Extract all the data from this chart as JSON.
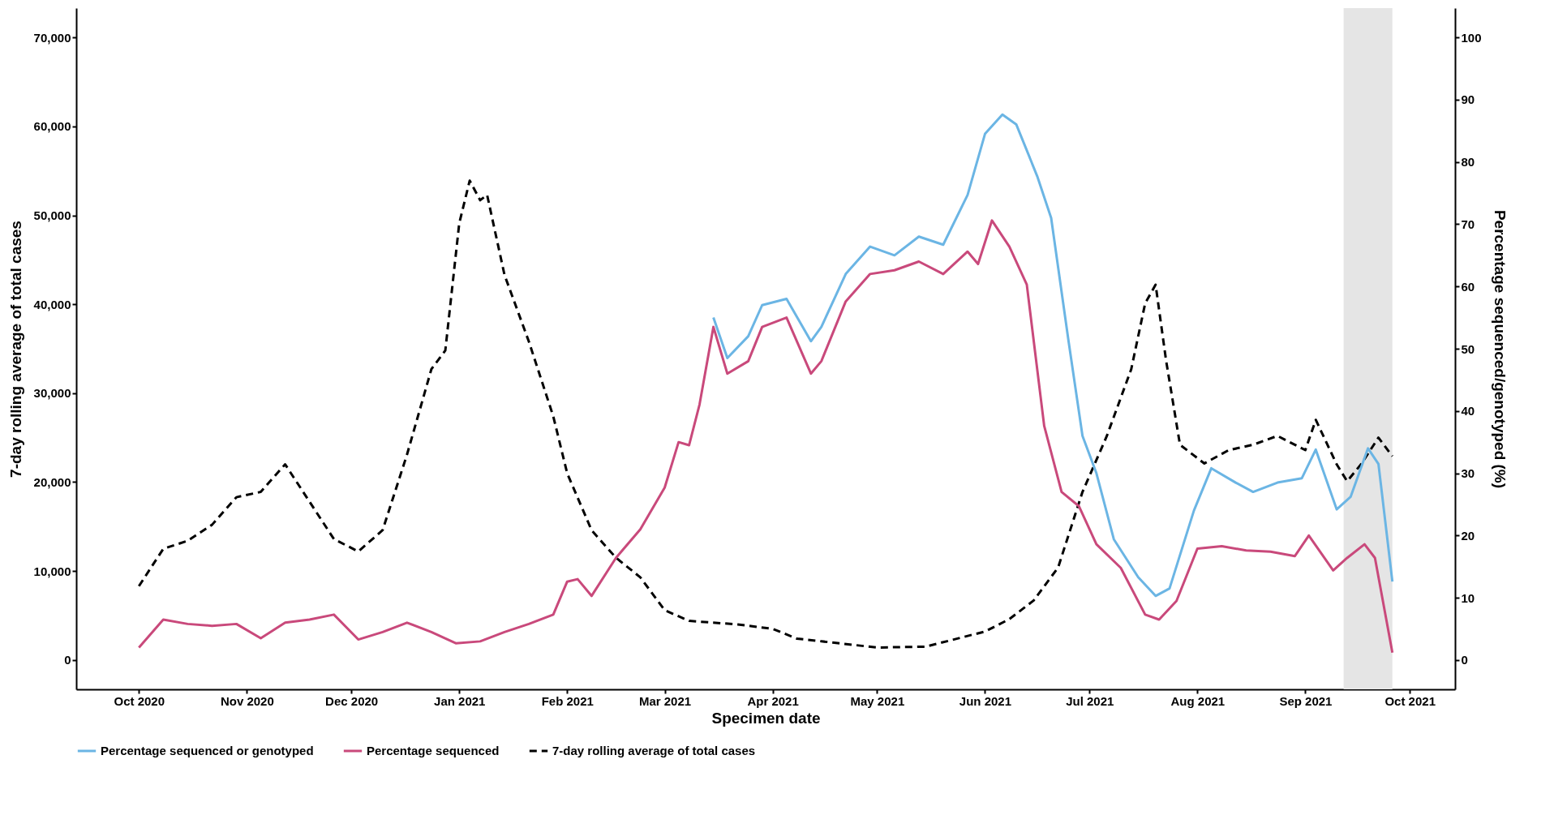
{
  "chart_data": {
    "type": "line",
    "xlabel": "Specimen date",
    "ylabel": "7-day rolling average of total cases",
    "y2label": "Percentage sequenced/genotyped (%)",
    "xlim": [
      "2020-09-13",
      "2021-10-14"
    ],
    "xticks": [
      {
        "value": "2020-10-01",
        "label": "Oct 2020"
      },
      {
        "value": "2020-11-01",
        "label": "Nov 2020"
      },
      {
        "value": "2020-12-01",
        "label": "Dec 2020"
      },
      {
        "value": "2021-01-01",
        "label": "Jan 2021"
      },
      {
        "value": "2021-02-01",
        "label": "Feb 2021"
      },
      {
        "value": "2021-03-01",
        "label": "Mar 2021"
      },
      {
        "value": "2021-04-01",
        "label": "Apr 2021"
      },
      {
        "value": "2021-05-01",
        "label": "May 2021"
      },
      {
        "value": "2021-06-01",
        "label": "Jun 2021"
      },
      {
        "value": "2021-07-01",
        "label": "Jul 2021"
      },
      {
        "value": "2021-08-01",
        "label": "Aug 2021"
      },
      {
        "value": "2021-09-01",
        "label": "Sep 2021"
      },
      {
        "value": "2021-10-01",
        "label": "Oct 2021"
      }
    ],
    "ylim": [
      -3300,
      73300
    ],
    "yticks": [
      0,
      {
        "value": 10000,
        "label": "10,000"
      },
      {
        "value": 20000,
        "label": "20,000"
      },
      {
        "value": 30000,
        "label": "30,000"
      },
      {
        "value": 40000,
        "label": "40,000"
      },
      {
        "value": 50000,
        "label": "50,000"
      },
      {
        "value": 60000,
        "label": "60,000"
      },
      {
        "value": 70000,
        "label": "70,000"
      }
    ],
    "y2lim": [
      -4.7,
      104.7
    ],
    "y2ticks": [
      0,
      10,
      20,
      30,
      40,
      50,
      60,
      70,
      80,
      90,
      100
    ],
    "grid": false,
    "legend": "bottom",
    "bands": [
      {
        "axis": "x",
        "from": "2021-09-12",
        "to": "2021-09-26",
        "color": "#e5e5e5"
      }
    ],
    "series": [
      {
        "name": "Percentage sequenced or genotyped",
        "color": "#6bb5e4",
        "axis": "y2",
        "line_style": "solid",
        "x": [
          "2021-03-15",
          "2021-03-19",
          "2021-03-25",
          "2021-03-29",
          "2021-04-05",
          "2021-04-12",
          "2021-04-15",
          "2021-04-22",
          "2021-04-29",
          "2021-05-06",
          "2021-05-13",
          "2021-05-20",
          "2021-05-27",
          "2021-06-01",
          "2021-06-06",
          "2021-06-10",
          "2021-06-16",
          "2021-06-20",
          "2021-06-25",
          "2021-06-29",
          "2021-07-03",
          "2021-07-08",
          "2021-07-15",
          "2021-07-20",
          "2021-07-24",
          "2021-07-31",
          "2021-08-05",
          "2021-08-12",
          "2021-08-17",
          "2021-08-24",
          "2021-08-31",
          "2021-09-04",
          "2021-09-10",
          "2021-09-14",
          "2021-09-19",
          "2021-09-22",
          "2021-09-26"
        ],
        "values": [
          55,
          48.5,
          52,
          57,
          58,
          51.2,
          53.5,
          62,
          66.4,
          65,
          68,
          66.7,
          74.7,
          84.5,
          87.6,
          86,
          77.7,
          71,
          51.2,
          36,
          30,
          19.4,
          13.3,
          10.3,
          11.5,
          24,
          30.8,
          28.5,
          27,
          28.5,
          29.2,
          33.8,
          24.2,
          26.2,
          34,
          31.5,
          12.6
        ]
      },
      {
        "name": "Percentage sequenced",
        "color": "#c9497b",
        "axis": "y2",
        "line_style": "solid",
        "x": [
          "2020-10-01",
          "2020-10-08",
          "2020-10-15",
          "2020-10-22",
          "2020-10-29",
          "2020-11-05",
          "2020-11-12",
          "2020-11-19",
          "2020-11-26",
          "2020-12-03",
          "2020-12-10",
          "2020-12-17",
          "2020-12-24",
          "2020-12-31",
          "2021-01-07",
          "2021-01-14",
          "2021-01-21",
          "2021-01-28",
          "2021-02-01",
          "2021-02-04",
          "2021-02-08",
          "2021-02-15",
          "2021-02-22",
          "2021-03-01",
          "2021-03-05",
          "2021-03-08",
          "2021-03-11",
          "2021-03-15",
          "2021-03-19",
          "2021-03-25",
          "2021-03-29",
          "2021-04-05",
          "2021-04-12",
          "2021-04-15",
          "2021-04-22",
          "2021-04-29",
          "2021-05-06",
          "2021-05-13",
          "2021-05-20",
          "2021-05-27",
          "2021-05-30",
          "2021-06-03",
          "2021-06-08",
          "2021-06-13",
          "2021-06-18",
          "2021-06-23",
          "2021-06-28",
          "2021-07-03",
          "2021-07-10",
          "2021-07-17",
          "2021-07-21",
          "2021-07-26",
          "2021-08-01",
          "2021-08-08",
          "2021-08-15",
          "2021-08-22",
          "2021-08-29",
          "2021-09-02",
          "2021-09-09",
          "2021-09-13",
          "2021-09-18",
          "2021-09-21",
          "2021-09-26"
        ],
        "values": [
          2,
          6.5,
          5.8,
          5.5,
          5.8,
          3.5,
          6,
          6.5,
          7.3,
          3.3,
          4.5,
          6,
          4.5,
          2.7,
          3,
          4.5,
          5.8,
          7.3,
          12.6,
          13,
          10.3,
          16.4,
          21,
          27.7,
          35,
          34.5,
          41,
          53.5,
          46,
          48,
          53.5,
          55,
          46,
          48,
          57.6,
          62,
          62.6,
          64,
          62,
          65.6,
          63.6,
          70.6,
          66.4,
          60.3,
          37.6,
          27,
          24.7,
          18.6,
          14.8,
          7.3,
          6.5,
          9.5,
          17.9,
          18.3,
          17.6,
          17.4,
          16.7,
          20,
          14.4,
          16.4,
          18.6,
          16.4,
          1.2
        ]
      },
      {
        "name": "7-day rolling average of total cases",
        "color": "#000000",
        "axis": "y",
        "line_style": "dashed",
        "x": [
          "2020-10-01",
          "2020-10-08",
          "2020-10-15",
          "2020-10-22",
          "2020-10-29",
          "2020-11-05",
          "2020-11-12",
          "2020-11-19",
          "2020-11-26",
          "2020-12-03",
          "2020-12-10",
          "2020-12-17",
          "2020-12-24",
          "2020-12-28",
          "2021-01-01",
          "2021-01-04",
          "2021-01-07",
          "2021-01-09",
          "2021-01-14",
          "2021-01-21",
          "2021-01-28",
          "2021-02-01",
          "2021-02-08",
          "2021-02-15",
          "2021-02-22",
          "2021-03-01",
          "2021-03-08",
          "2021-03-22",
          "2021-04-01",
          "2021-04-08",
          "2021-04-15",
          "2021-05-01",
          "2021-05-15",
          "2021-06-01",
          "2021-06-08",
          "2021-06-15",
          "2021-06-22",
          "2021-06-29",
          "2021-07-06",
          "2021-07-13",
          "2021-07-17",
          "2021-07-20",
          "2021-07-23",
          "2021-07-27",
          "2021-08-03",
          "2021-08-10",
          "2021-08-17",
          "2021-08-24",
          "2021-09-01",
          "2021-09-04",
          "2021-09-10",
          "2021-09-13",
          "2021-09-17",
          "2021-09-22",
          "2021-09-26"
        ],
        "values": [
          8300,
          12500,
          13400,
          15200,
          18300,
          18900,
          22000,
          17800,
          13600,
          12200,
          14600,
          23100,
          32700,
          34800,
          49100,
          53900,
          51700,
          52300,
          43300,
          35800,
          27400,
          21000,
          14600,
          11500,
          9300,
          5600,
          4400,
          4000,
          3500,
          2400,
          2100,
          1400,
          1500,
          3200,
          4600,
          6700,
          10400,
          18900,
          25200,
          32700,
          40100,
          42200,
          33700,
          24200,
          22100,
          23600,
          24200,
          25200,
          23600,
          27000,
          22000,
          20100,
          22000,
          25000,
          22900
        ]
      }
    ]
  }
}
